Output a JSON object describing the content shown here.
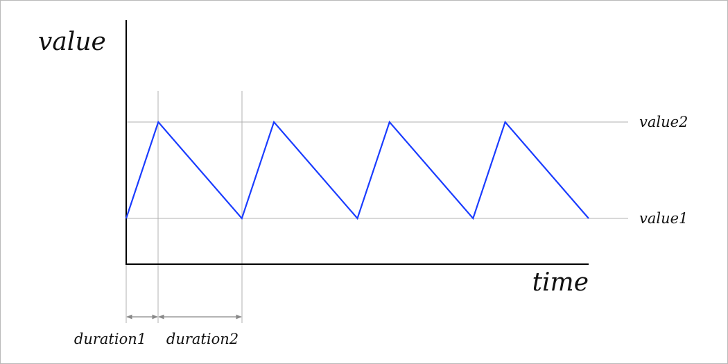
{
  "labels": {
    "y_axis": "value",
    "x_axis": "time",
    "level_high": "value2",
    "level_low": "value1",
    "duration_rise": "duration1",
    "duration_fall": "duration2"
  },
  "colors": {
    "signal": "#1a3cff",
    "axis": "#000000",
    "guide": "#b0b0b0",
    "dimension": "#888888"
  },
  "chart_data": {
    "type": "line",
    "x": [
      0,
      1,
      3.6,
      4.6,
      7.2,
      8.2,
      10.8,
      11.8,
      14.4
    ],
    "y": [
      1,
      2,
      1,
      2,
      1,
      2,
      1,
      2,
      1
    ],
    "xlabel": "time",
    "ylabel": "value"
  }
}
